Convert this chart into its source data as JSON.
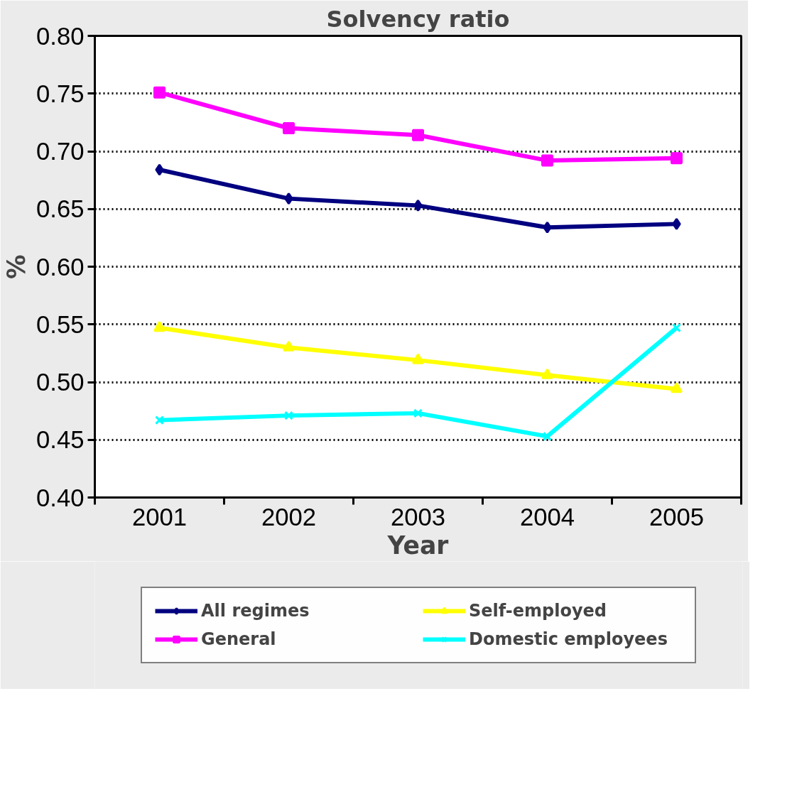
{
  "chart_data": {
    "type": "line",
    "title": "Solvency ratio",
    "xlabel": "Year",
    "ylabel": "%",
    "categories": [
      "2001",
      "2002",
      "2003",
      "2004",
      "2005"
    ],
    "series": [
      {
        "name": "All regimes",
        "color": "#000080",
        "marker": "diamond",
        "values": [
          0.684,
          0.659,
          0.653,
          0.634,
          0.637
        ]
      },
      {
        "name": "General",
        "color": "#ff00ff",
        "marker": "square",
        "values": [
          0.751,
          0.72,
          0.714,
          0.692,
          0.694
        ]
      },
      {
        "name": "Self-employed",
        "color": "#ffff00",
        "marker": "triangle",
        "values": [
          0.547,
          0.53,
          0.519,
          0.506,
          0.494
        ]
      },
      {
        "name": "Domestic employees",
        "color": "#00ffff",
        "marker": "x",
        "values": [
          0.467,
          0.471,
          0.473,
          0.453,
          0.547
        ]
      }
    ],
    "ylim": [
      0.4,
      0.8
    ],
    "yticks": [
      {
        "value": 0.4,
        "label": "0.40"
      },
      {
        "value": 0.45,
        "label": "0.45"
      },
      {
        "value": 0.5,
        "label": "0.50"
      },
      {
        "value": 0.55,
        "label": "0.55"
      },
      {
        "value": 0.6,
        "label": "0.60"
      },
      {
        "value": 0.65,
        "label": "0.65"
      },
      {
        "value": 0.7,
        "label": "0.70"
      },
      {
        "value": 0.75,
        "label": "0.75"
      },
      {
        "value": 0.8,
        "label": "0.80"
      }
    ],
    "grid": "y",
    "legend": "bottom",
    "line_style": "solid"
  }
}
